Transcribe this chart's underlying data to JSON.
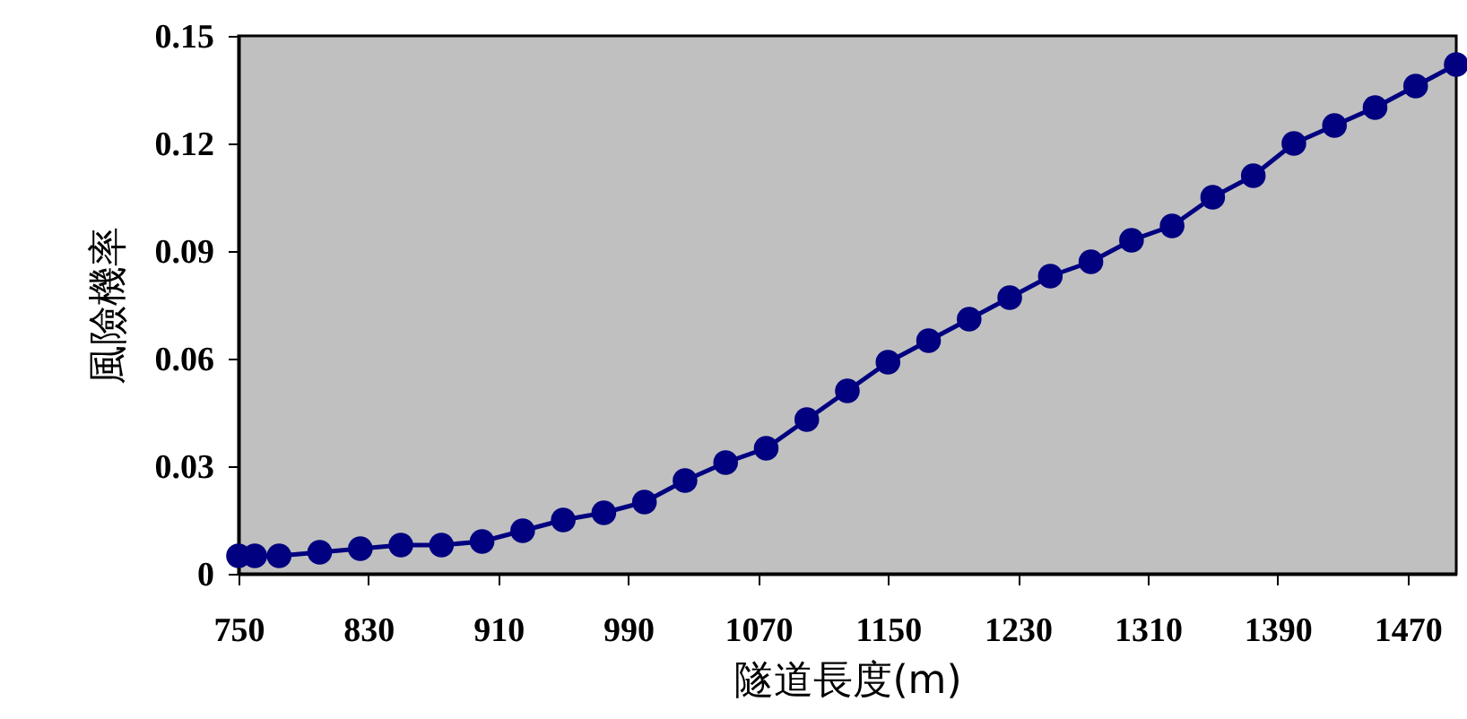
{
  "chart_data": {
    "type": "line",
    "xlabel": "隧道長度(m)",
    "ylabel": "風險機率",
    "x": [
      750,
      760,
      775,
      800,
      825,
      850,
      875,
      900,
      925,
      950,
      975,
      1000,
      1025,
      1050,
      1075,
      1100,
      1125,
      1150,
      1175,
      1200,
      1225,
      1250,
      1275,
      1300,
      1325,
      1350,
      1375,
      1400,
      1425,
      1450,
      1475,
      1500
    ],
    "series": [
      {
        "color": "#000080",
        "values": [
          0.005,
          0.005,
          0.005,
          0.006,
          0.007,
          0.008,
          0.008,
          0.009,
          0.012,
          0.015,
          0.017,
          0.02,
          0.026,
          0.031,
          0.035,
          0.043,
          0.051,
          0.059,
          0.065,
          0.071,
          0.077,
          0.083,
          0.087,
          0.093,
          0.097,
          0.105,
          0.111,
          0.12,
          0.125,
          0.13,
          0.136,
          0.142
        ]
      }
    ],
    "xlim": [
      750,
      1500
    ],
    "xticks": [
      750,
      830,
      910,
      990,
      1070,
      1150,
      1230,
      1310,
      1390,
      1470
    ],
    "ylim": [
      0,
      0.15
    ],
    "yticks": [
      0,
      0.03,
      0.06,
      0.09,
      0.12,
      0.15
    ],
    "grid": false,
    "marker": "circle",
    "line_style": "solid"
  }
}
